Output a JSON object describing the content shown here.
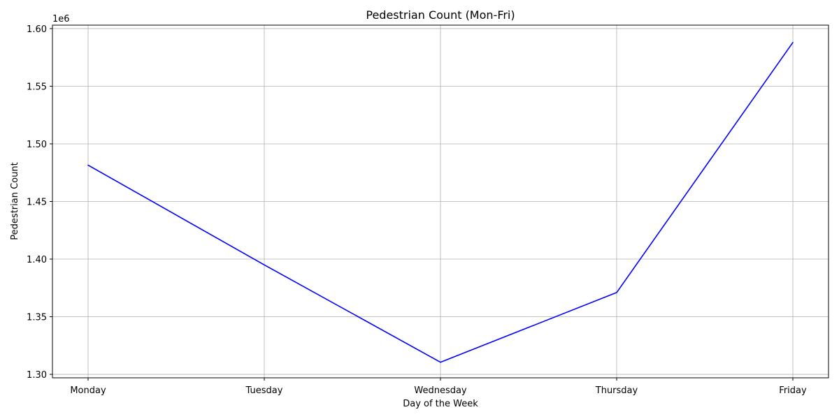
{
  "chart_data": {
    "type": "line",
    "title": "Pedestrian Count (Mon-Fri)",
    "xlabel": "Day of the Week",
    "ylabel": "Pedestrian Count",
    "offset_label": "1e6",
    "categories": [
      "Monday",
      "Tuesday",
      "Wednesday",
      "Thursday",
      "Friday"
    ],
    "series": [
      {
        "values": [
          1481500,
          1395000,
          1310500,
          1371000,
          1588000
        ],
        "color": "#0000ff"
      }
    ],
    "ylim": [
      1.297,
      1.603
    ],
    "yticks": [
      1.3,
      1.35,
      1.4,
      1.45,
      1.5,
      1.55,
      1.6
    ],
    "ytick_labels": [
      "1.30",
      "1.35",
      "1.40",
      "1.45",
      "1.50",
      "1.55",
      "1.60"
    ],
    "ytick_scale": 1000000,
    "grid": true,
    "grid_color": "#b0b0b0"
  }
}
